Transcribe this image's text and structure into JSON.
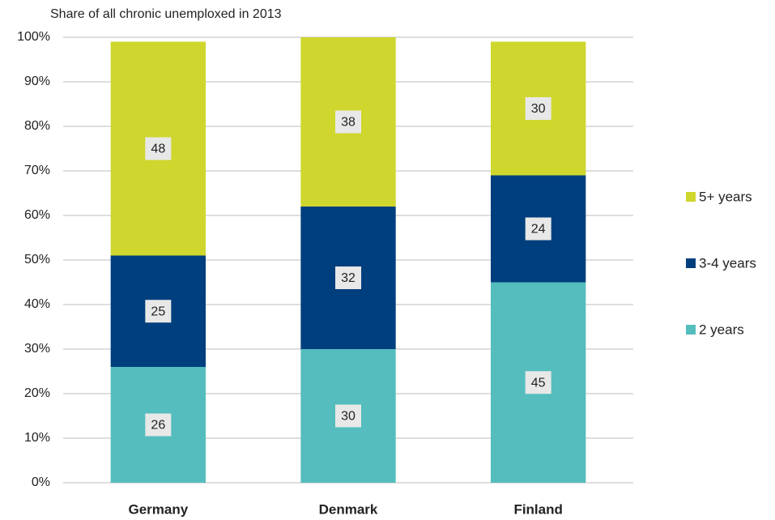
{
  "chart_data": {
    "type": "stacked_bar",
    "title": "Share of all chronic unemploxed  in 2013",
    "categories": [
      "Germany",
      "Denmark",
      "Finland"
    ],
    "series": [
      {
        "name": "2 years",
        "color": "#55bdbd",
        "values": [
          26,
          30,
          45
        ]
      },
      {
        "name": "3-4 years",
        "color": "#003f7d",
        "values": [
          25,
          32,
          24
        ]
      },
      {
        "name": "5+ years",
        "color": "#cfd62e",
        "values": [
          48,
          38,
          30
        ]
      }
    ],
    "ylim": [
      0,
      100
    ],
    "yticks": [
      {
        "value": 0,
        "label": "0%"
      },
      {
        "value": 10,
        "label": "10%"
      },
      {
        "value": 20,
        "label": "20%"
      },
      {
        "value": 30,
        "label": "30%"
      },
      {
        "value": 40,
        "label": "40%"
      },
      {
        "value": 50,
        "label": "50%"
      },
      {
        "value": 60,
        "label": "60%"
      },
      {
        "value": 70,
        "label": "70%"
      },
      {
        "value": 80,
        "label": "80%"
      },
      {
        "value": 90,
        "label": "90%"
      },
      {
        "value": 100,
        "label": "100%"
      }
    ],
    "grid": true,
    "legend": "right"
  }
}
